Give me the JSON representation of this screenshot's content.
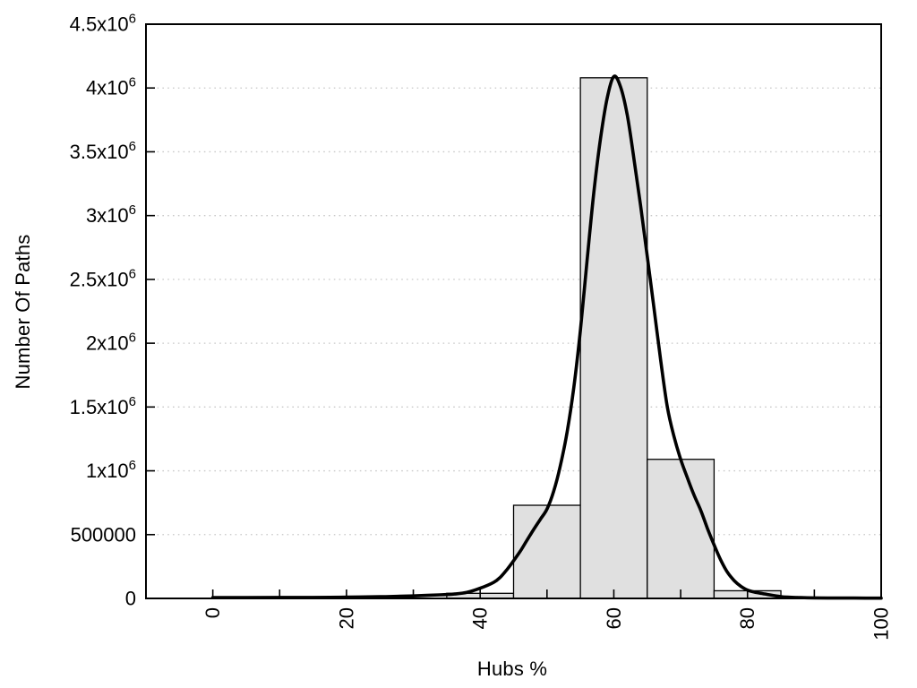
{
  "chart_data": {
    "type": "bar",
    "subtype": "histogram-with-smooth-curve",
    "title": "",
    "xlabel": "Hubs %",
    "ylabel": "Number Of Paths",
    "xlim": [
      -10,
      100
    ],
    "ylim": [
      0,
      4500000
    ],
    "grid": {
      "horizontal": true,
      "vertical": false,
      "style": "dotted"
    },
    "legend": "none",
    "x_ticks": {
      "minor_step": 10,
      "minor_range": [
        0,
        100
      ],
      "labeled": [
        {
          "v": 0,
          "label": "0"
        },
        {
          "v": 20,
          "label": "20"
        },
        {
          "v": 40,
          "label": "40"
        },
        {
          "v": 60,
          "label": "60"
        },
        {
          "v": 80,
          "label": "80"
        },
        {
          "v": 100,
          "label": "100"
        }
      ],
      "label_rotation_deg": -90
    },
    "y_ticks": [
      {
        "v": 0,
        "label": "0"
      },
      {
        "v": 500000,
        "label": "500000"
      },
      {
        "v": 1000000,
        "label": "1x10^6"
      },
      {
        "v": 1500000,
        "label": "1.5x10^6"
      },
      {
        "v": 2000000,
        "label": "2x10^6"
      },
      {
        "v": 2500000,
        "label": "2.5x10^6"
      },
      {
        "v": 3000000,
        "label": "3x10^6"
      },
      {
        "v": 3500000,
        "label": "3.5x10^6"
      },
      {
        "v": 4000000,
        "label": "4x10^6"
      },
      {
        "v": 4500000,
        "label": "4.5x10^6"
      }
    ],
    "bars": [
      {
        "x0": 35,
        "x1": 45,
        "value": 40000
      },
      {
        "x0": 45,
        "x1": 55,
        "value": 730000
      },
      {
        "x0": 55,
        "x1": 65,
        "value": 4080000
      },
      {
        "x0": 65,
        "x1": 75,
        "value": 1090000
      },
      {
        "x0": 75,
        "x1": 85,
        "value": 60000
      }
    ],
    "curve": [
      [
        0,
        7000
      ],
      [
        5,
        7000
      ],
      [
        10,
        7500
      ],
      [
        15,
        8000
      ],
      [
        20,
        9500
      ],
      [
        25,
        13000
      ],
      [
        28,
        17000
      ],
      [
        30,
        20000
      ],
      [
        32,
        24000
      ],
      [
        34,
        28000
      ],
      [
        36,
        34000
      ],
      [
        38,
        47000
      ],
      [
        40,
        80000
      ],
      [
        42,
        125000
      ],
      [
        43,
        165000
      ],
      [
        44,
        225000
      ],
      [
        45,
        295000
      ],
      [
        46,
        370000
      ],
      [
        47,
        455000
      ],
      [
        48,
        540000
      ],
      [
        49,
        620000
      ],
      [
        50,
        700000
      ],
      [
        51,
        840000
      ],
      [
        52,
        1040000
      ],
      [
        53,
        1300000
      ],
      [
        54,
        1650000
      ],
      [
        55,
        2100000
      ],
      [
        56,
        2650000
      ],
      [
        57,
        3180000
      ],
      [
        58,
        3600000
      ],
      [
        59,
        3920000
      ],
      [
        60,
        4090000
      ],
      [
        61,
        4010000
      ],
      [
        62,
        3790000
      ],
      [
        63,
        3450000
      ],
      [
        64,
        3080000
      ],
      [
        65,
        2680000
      ],
      [
        66,
        2280000
      ],
      [
        67,
        1870000
      ],
      [
        68,
        1500000
      ],
      [
        69,
        1270000
      ],
      [
        70,
        1090000
      ],
      [
        71,
        945000
      ],
      [
        72,
        810000
      ],
      [
        73,
        690000
      ],
      [
        74,
        550000
      ],
      [
        75,
        420000
      ],
      [
        76,
        300000
      ],
      [
        77,
        205000
      ],
      [
        78,
        140000
      ],
      [
        79,
        95000
      ],
      [
        80,
        65000
      ],
      [
        81,
        50000
      ],
      [
        82,
        40000
      ],
      [
        83,
        31000
      ],
      [
        84,
        22000
      ],
      [
        85,
        14000
      ],
      [
        86,
        10000
      ],
      [
        88,
        6000
      ],
      [
        90,
        4000
      ],
      [
        93,
        3000
      ],
      [
        96,
        2500
      ],
      [
        100,
        2200
      ]
    ],
    "colors": {
      "background": "#ffffff",
      "bar_fill": "#e0e0e0",
      "bar_border": "#000000",
      "curve": "#000000",
      "grid": "#c8c8c8",
      "axis": "#000000",
      "text": "#000000"
    }
  }
}
